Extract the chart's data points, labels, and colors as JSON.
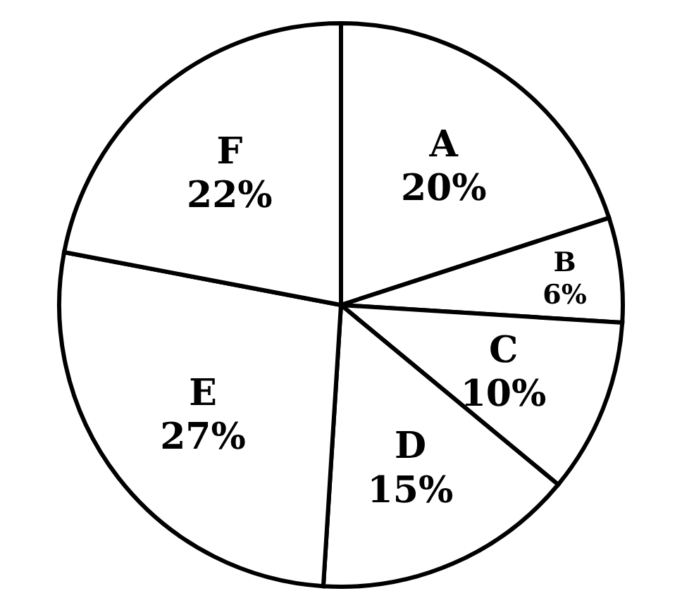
{
  "chart_data": {
    "type": "pie",
    "categories": [
      "A",
      "B",
      "C",
      "D",
      "E",
      "F"
    ],
    "values": [
      20,
      6,
      10,
      15,
      27,
      22
    ],
    "value_labels": [
      "20%",
      "6%",
      "10%",
      "15%",
      "27%",
      "22%"
    ],
    "colors": [
      "#ffffff",
      "#ffffff",
      "#ffffff",
      "#ffffff",
      "#ffffff",
      "#ffffff"
    ],
    "legend": false
  }
}
